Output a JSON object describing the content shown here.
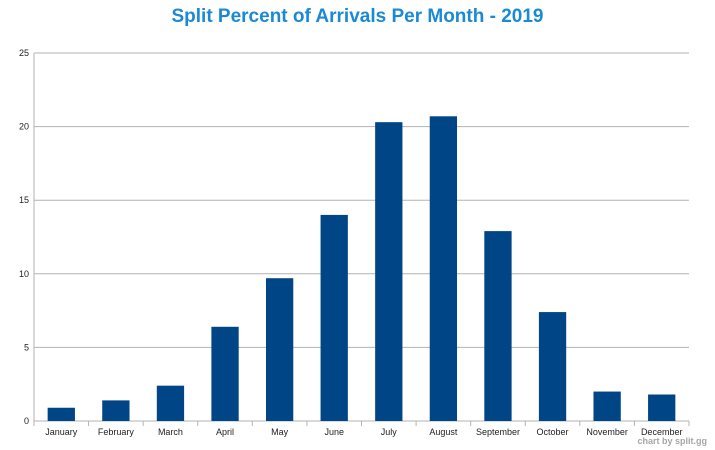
{
  "chart_data": {
    "type": "bar",
    "title": "Split Percent of Arrivals Per Month - 2019",
    "xlabel": "",
    "ylabel": "",
    "categories": [
      "January",
      "February",
      "March",
      "April",
      "May",
      "June",
      "July",
      "August",
      "September",
      "October",
      "November",
      "December"
    ],
    "values": [
      0.9,
      1.4,
      2.4,
      6.4,
      9.7,
      14.0,
      20.3,
      20.7,
      12.9,
      7.4,
      2.0,
      1.8
    ],
    "ylim": [
      0,
      25
    ],
    "yticks": [
      "0",
      "5",
      "10",
      "15",
      "20",
      "25"
    ],
    "grid": true,
    "legend": "none"
  },
  "watermark": "chart by split.gg",
  "colors": {
    "bar": "#004586",
    "title": "#1a8ad4",
    "grid": "#b3b3b3",
    "axis": "#b3b3b3",
    "watermark": "#a6a6a6"
  }
}
